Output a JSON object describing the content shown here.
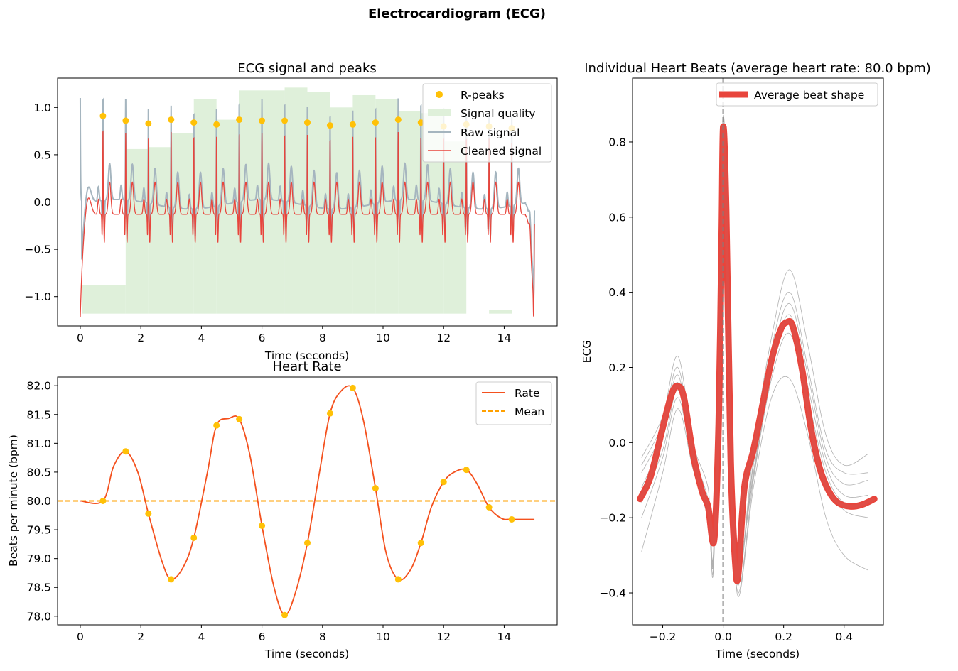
{
  "figure": {
    "title": "Electrocardiogram (ECG)"
  },
  "chart_data": [
    {
      "type": "line",
      "title": "ECG signal and peaks",
      "xlabel": "Time (seconds)",
      "ylabel": "",
      "xlim": [
        -0.75,
        15.75
      ],
      "ylim": [
        -1.31,
        1.31
      ],
      "xticks": [
        0,
        2,
        4,
        6,
        8,
        10,
        12,
        14
      ],
      "yticks": [
        -1.0,
        -0.5,
        0.0,
        0.5,
        1.0
      ],
      "ytick_labels": [
        "−1.0",
        "−0.5",
        "0.0",
        "0.5",
        "1.0"
      ],
      "legend": {
        "placement": "top-right",
        "entries": [
          "R-peaks",
          "Signal quality",
          "Raw signal",
          "Cleaned signal"
        ]
      },
      "colors": {
        "peaks": "#FFC107",
        "quality": "#DFF0DA",
        "raw": "#A5B5BF",
        "cleaned": "#E8453C"
      },
      "r_peaks": {
        "times": [
          0.75,
          1.5,
          2.25,
          3.0,
          3.75,
          4.5,
          5.25,
          6.0,
          6.75,
          7.5,
          8.25,
          9.0,
          9.75,
          10.5,
          11.25,
          12.0,
          12.75,
          13.5,
          14.25
        ],
        "values": [
          0.91,
          0.86,
          0.83,
          0.87,
          0.84,
          0.82,
          0.87,
          0.86,
          0.86,
          0.84,
          0.81,
          0.82,
          0.84,
          0.87,
          0.84,
          0.8,
          0.82,
          0.8,
          0.78
        ]
      },
      "signal_quality": {
        "segments": [
          {
            "x0": 0.05,
            "x1": 1.5,
            "top": -0.88
          },
          {
            "x0": 1.5,
            "x1": 2.25,
            "top": 0.56
          },
          {
            "x0": 2.25,
            "x1": 3.0,
            "top": 0.58
          },
          {
            "x0": 3.0,
            "x1": 3.75,
            "top": 0.73
          },
          {
            "x0": 3.75,
            "x1": 4.5,
            "top": 1.09
          },
          {
            "x0": 4.5,
            "x1": 5.25,
            "top": 0.87
          },
          {
            "x0": 5.25,
            "x1": 6.0,
            "top": 1.18
          },
          {
            "x0": 6.0,
            "x1": 6.75,
            "top": 1.18
          },
          {
            "x0": 6.75,
            "x1": 7.5,
            "top": 1.21
          },
          {
            "x0": 7.5,
            "x1": 8.25,
            "top": 1.16
          },
          {
            "x0": 8.25,
            "x1": 9.0,
            "top": 1.0
          },
          {
            "x0": 9.0,
            "x1": 9.75,
            "top": 1.13
          },
          {
            "x0": 9.75,
            "x1": 10.5,
            "top": 1.09
          },
          {
            "x0": 10.5,
            "x1": 11.25,
            "top": 0.96
          },
          {
            "x0": 11.25,
            "x1": 12.0,
            "top": 0.94
          },
          {
            "x0": 12.0,
            "x1": 12.75,
            "top": 0.64
          },
          {
            "x0": 13.5,
            "x1": 14.25,
            "top": -1.14
          }
        ],
        "bottom": -1.18
      }
    },
    {
      "type": "line",
      "title": "Heart Rate",
      "xlabel": "Time (seconds)",
      "ylabel": "Beats per minute (bpm)",
      "xlim": [
        -0.75,
        15.75
      ],
      "ylim": [
        77.85,
        82.15
      ],
      "xticks": [
        0,
        2,
        4,
        6,
        8,
        10,
        12,
        14
      ],
      "yticks": [
        78.0,
        78.5,
        79.0,
        79.5,
        80.0,
        80.5,
        81.0,
        81.5,
        82.0
      ],
      "legend": {
        "placement": "top-right",
        "entries": [
          "Rate",
          "Mean"
        ]
      },
      "colors": {
        "rate": "#F4511E",
        "mean": "#FFA000",
        "points": "#FFC107"
      },
      "mean": 80.0,
      "rate_points": {
        "times": [
          0.75,
          1.5,
          2.25,
          3.0,
          3.75,
          4.5,
          5.25,
          6.0,
          6.75,
          7.5,
          8.25,
          9.0,
          9.75,
          10.5,
          11.25,
          12.0,
          12.75,
          13.5,
          14.25
        ],
        "values": [
          80.0,
          80.86,
          79.78,
          78.64,
          79.36,
          81.31,
          81.42,
          79.57,
          78.02,
          79.27,
          81.52,
          81.96,
          80.22,
          78.64,
          79.27,
          80.33,
          80.54,
          79.89,
          79.68
        ]
      },
      "rate_curve": {
        "x": [
          0.0,
          0.75,
          1.1,
          1.5,
          1.9,
          2.25,
          2.7,
          3.0,
          3.4,
          3.75,
          4.2,
          4.5,
          4.9,
          5.25,
          5.6,
          6.0,
          6.4,
          6.75,
          7.1,
          7.5,
          7.9,
          8.25,
          8.6,
          9.0,
          9.35,
          9.75,
          10.1,
          10.5,
          10.9,
          11.25,
          11.6,
          12.0,
          12.35,
          12.75,
          13.1,
          13.5,
          13.9,
          14.25,
          15.0
        ],
        "y": [
          80.0,
          80.0,
          80.6,
          80.86,
          80.5,
          79.78,
          78.95,
          78.64,
          78.85,
          79.36,
          80.5,
          81.31,
          81.43,
          81.42,
          80.8,
          79.57,
          78.5,
          78.02,
          78.4,
          79.27,
          80.5,
          81.52,
          81.9,
          81.96,
          81.4,
          80.22,
          79.1,
          78.64,
          78.8,
          79.27,
          79.9,
          80.33,
          80.5,
          80.54,
          80.3,
          79.89,
          79.7,
          79.68,
          79.68
        ]
      }
    },
    {
      "type": "line",
      "title": "Individual Heart Beats (average heart rate: 80.0 bpm)",
      "xlabel": "Time (seconds)",
      "ylabel": "ECG",
      "xlim": [
        -0.3,
        0.53
      ],
      "ylim": [
        -0.485,
        0.97
      ],
      "xticks": [
        -0.2,
        0.0,
        0.2,
        0.4
      ],
      "xtick_labels": [
        "−0.2",
        "0.0",
        "0.2",
        "0.4"
      ],
      "yticks": [
        -0.4,
        -0.2,
        0.0,
        0.2,
        0.4,
        0.6,
        0.8
      ],
      "ytick_labels": [
        "−0.4",
        "−0.2",
        "0.0",
        "0.2",
        "0.4",
        "0.6",
        "0.8"
      ],
      "legend": {
        "placement": "top-right",
        "entries": [
          "Average beat shape"
        ]
      },
      "colors": {
        "average": "#E8453C",
        "individual": "#B0B0B0",
        "marker": "#7F7F7F"
      },
      "vline_x": 0.0,
      "average_beat": {
        "x": [
          -0.275,
          -0.24,
          -0.2,
          -0.17,
          -0.15,
          -0.13,
          -0.1,
          -0.07,
          -0.05,
          -0.03,
          -0.015,
          -0.005,
          0.0,
          0.01,
          0.025,
          0.04,
          0.05,
          0.07,
          0.1,
          0.13,
          0.16,
          0.19,
          0.21,
          0.23,
          0.26,
          0.29,
          0.32,
          0.35,
          0.38,
          0.42,
          0.46,
          0.5
        ],
        "y": [
          -0.15,
          -0.09,
          0.04,
          0.13,
          0.15,
          0.12,
          -0.03,
          -0.13,
          -0.17,
          -0.26,
          0.05,
          0.55,
          0.84,
          0.62,
          -0.05,
          -0.32,
          -0.35,
          -0.12,
          -0.02,
          0.1,
          0.22,
          0.3,
          0.32,
          0.31,
          0.2,
          0.04,
          -0.07,
          -0.13,
          -0.16,
          -0.17,
          -0.165,
          -0.15
        ]
      },
      "individual_beats": [
        {
          "x": [
            -0.27,
            -0.2,
            -0.15,
            -0.1,
            -0.05,
            -0.03,
            0.0,
            0.03,
            0.05,
            0.1,
            0.16,
            0.22,
            0.28,
            0.34,
            0.4,
            0.48
          ],
          "y": [
            -0.04,
            0.07,
            0.23,
            0.0,
            -0.12,
            -0.28,
            0.87,
            -0.05,
            -0.38,
            -0.02,
            0.28,
            0.46,
            0.26,
            0.02,
            -0.06,
            -0.03
          ]
        },
        {
          "x": [
            -0.27,
            -0.2,
            -0.15,
            -0.1,
            -0.05,
            -0.03,
            0.0,
            0.03,
            0.05,
            0.1,
            0.16,
            0.22,
            0.28,
            0.34,
            0.4,
            0.48
          ],
          "y": [
            -0.29,
            -0.08,
            0.09,
            -0.07,
            -0.2,
            -0.29,
            0.8,
            -0.08,
            -0.41,
            -0.12,
            0.12,
            0.17,
            0.02,
            -0.2,
            -0.3,
            -0.34
          ]
        },
        {
          "x": [
            -0.27,
            -0.2,
            -0.15,
            -0.1,
            -0.05,
            -0.03,
            0.0,
            0.03,
            0.05,
            0.1,
            0.16,
            0.22,
            0.28,
            0.34,
            0.4,
            0.48
          ],
          "y": [
            -0.06,
            0.05,
            0.2,
            -0.02,
            -0.15,
            -0.27,
            0.86,
            -0.06,
            -0.36,
            -0.05,
            0.25,
            0.4,
            0.2,
            -0.02,
            -0.08,
            -0.08
          ]
        },
        {
          "x": [
            -0.27,
            -0.2,
            -0.15,
            -0.1,
            -0.05,
            -0.03,
            0.0,
            0.03,
            0.05,
            0.1,
            0.16,
            0.22,
            0.28,
            0.34,
            0.4,
            0.48
          ],
          "y": [
            -0.12,
            0.01,
            0.16,
            -0.04,
            -0.17,
            -0.26,
            0.84,
            -0.04,
            -0.34,
            -0.08,
            0.2,
            0.34,
            0.15,
            -0.06,
            -0.14,
            -0.14
          ]
        },
        {
          "x": [
            -0.27,
            -0.2,
            -0.15,
            -0.1,
            -0.05,
            -0.03,
            0.0,
            0.03,
            0.05,
            0.1,
            0.16,
            0.22,
            0.28,
            0.34,
            0.4,
            0.48
          ],
          "y": [
            -0.2,
            -0.04,
            0.12,
            -0.06,
            -0.19,
            -0.3,
            0.82,
            -0.07,
            -0.4,
            -0.1,
            0.17,
            0.29,
            0.1,
            -0.1,
            -0.18,
            -0.2
          ]
        },
        {
          "x": [
            -0.27,
            -0.2,
            -0.15,
            -0.1,
            -0.05,
            -0.03,
            0.0,
            0.03,
            0.05,
            0.1,
            0.16,
            0.22,
            0.28,
            0.34,
            0.4,
            0.48
          ],
          "y": [
            -0.16,
            -0.02,
            0.14,
            -0.05,
            -0.18,
            -0.25,
            0.85,
            -0.03,
            -0.33,
            -0.09,
            0.19,
            0.32,
            0.12,
            -0.08,
            -0.16,
            -0.16
          ]
        },
        {
          "x": [
            -0.27,
            -0.2,
            -0.15,
            -0.1,
            -0.05,
            -0.03,
            0.0,
            0.03,
            0.05,
            0.1,
            0.16,
            0.22,
            0.28,
            0.34,
            0.4,
            0.48
          ],
          "y": [
            -0.08,
            0.03,
            0.18,
            -0.03,
            -0.16,
            -0.28,
            0.83,
            -0.05,
            -0.37,
            -0.06,
            0.22,
            0.37,
            0.18,
            -0.04,
            -0.11,
            -0.1
          ]
        }
      ]
    }
  ]
}
